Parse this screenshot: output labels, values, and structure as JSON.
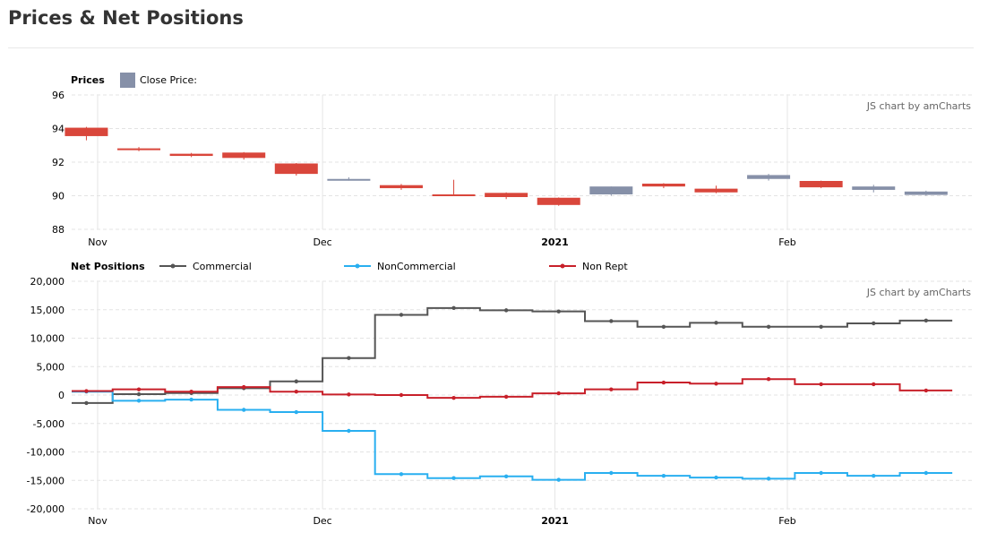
{
  "page": {
    "title": "Prices & Net Positions"
  },
  "colors": {
    "up": "#8690a8",
    "down": "#d9463b",
    "commercial": "#555555",
    "noncommercial": "#29aff0",
    "nonrept": "#c8202a"
  },
  "chart_data": [
    {
      "type": "candlestick",
      "title": "Prices",
      "legend": [
        {
          "label": "Close Price:",
          "color": "#8690a8"
        }
      ],
      "credit": "JS chart by amCharts",
      "ylim": [
        88,
        96
      ],
      "yticks": [
        "96",
        "94",
        "92",
        "90",
        "88"
      ],
      "xticks": [
        {
          "label": "Nov",
          "bold": false
        },
        {
          "label": "Dec",
          "bold": false
        },
        {
          "label": "2021",
          "bold": true
        },
        {
          "label": "Feb",
          "bold": false
        }
      ],
      "dates": [
        "2020-10-27",
        "2020-11-03",
        "2020-11-10",
        "2020-11-17",
        "2020-11-24",
        "2020-12-01",
        "2020-12-08",
        "2020-12-15",
        "2020-12-22",
        "2020-12-29",
        "2021-01-05",
        "2021-01-12",
        "2021-01-19",
        "2021-01-26",
        "2021-02-02",
        "2021-02-09",
        "2021-02-16"
      ],
      "ohlc": [
        [
          94.05,
          94.1,
          93.3,
          93.55
        ],
        [
          92.82,
          92.9,
          92.65,
          92.72
        ],
        [
          92.5,
          92.55,
          92.3,
          92.37
        ],
        [
          92.57,
          92.6,
          92.15,
          92.25
        ],
        [
          91.92,
          91.95,
          91.2,
          91.3
        ],
        [
          90.95,
          91.1,
          90.9,
          91.0
        ],
        [
          90.63,
          90.7,
          90.35,
          90.45
        ],
        [
          90.08,
          90.95,
          90.0,
          89.98
        ],
        [
          90.17,
          90.2,
          89.8,
          89.92
        ],
        [
          89.88,
          89.9,
          89.4,
          89.45
        ],
        [
          90.08,
          90.55,
          90.0,
          90.55
        ],
        [
          90.72,
          90.75,
          90.45,
          90.55
        ],
        [
          90.42,
          90.6,
          90.15,
          90.2
        ],
        [
          91.0,
          91.3,
          90.9,
          91.23
        ],
        [
          90.88,
          90.9,
          90.45,
          90.5
        ],
        [
          90.35,
          90.65,
          90.2,
          90.55
        ],
        [
          90.05,
          90.3,
          90.0,
          90.25
        ]
      ]
    },
    {
      "type": "line",
      "step": true,
      "title": "Net Positions",
      "credit": "JS chart by amCharts",
      "ylim": [
        -20000,
        20000
      ],
      "yticks": [
        "20,000",
        "15,000",
        "10,000",
        "5,000",
        "0",
        "-5,000",
        "-10,000",
        "-15,000",
        "-20,000"
      ],
      "xticks": [
        {
          "label": "Nov",
          "bold": false
        },
        {
          "label": "Dec",
          "bold": false
        },
        {
          "label": "2021",
          "bold": true
        },
        {
          "label": "Feb",
          "bold": false
        }
      ],
      "dates": [
        "2020-10-27",
        "2020-11-03",
        "2020-11-10",
        "2020-11-17",
        "2020-11-24",
        "2020-12-01",
        "2020-12-08",
        "2020-12-15",
        "2020-12-22",
        "2020-12-29",
        "2021-01-05",
        "2021-01-12",
        "2021-01-19",
        "2021-01-26",
        "2021-02-02",
        "2021-02-09",
        "2021-02-16"
      ],
      "series": [
        {
          "name": "Commercial",
          "color": "#555555",
          "values": [
            -1400,
            150,
            350,
            1200,
            2400,
            6500,
            14100,
            15300,
            14900,
            14700,
            13000,
            12000,
            12700,
            12000,
            12000,
            12600,
            13100
          ]
        },
        {
          "name": "NonCommercial",
          "color": "#29aff0",
          "values": [
            600,
            -1000,
            -800,
            -2600,
            -3000,
            -6300,
            -13900,
            -14600,
            -14300,
            -14900,
            -13700,
            -14200,
            -14500,
            -14700,
            -13700,
            -14200,
            -13700
          ]
        },
        {
          "name": "Non Rept",
          "color": "#c8202a",
          "values": [
            700,
            1000,
            600,
            1400,
            600,
            100,
            0,
            -500,
            -300,
            300,
            1000,
            2200,
            2000,
            2800,
            1900,
            1900,
            800
          ]
        }
      ]
    }
  ]
}
